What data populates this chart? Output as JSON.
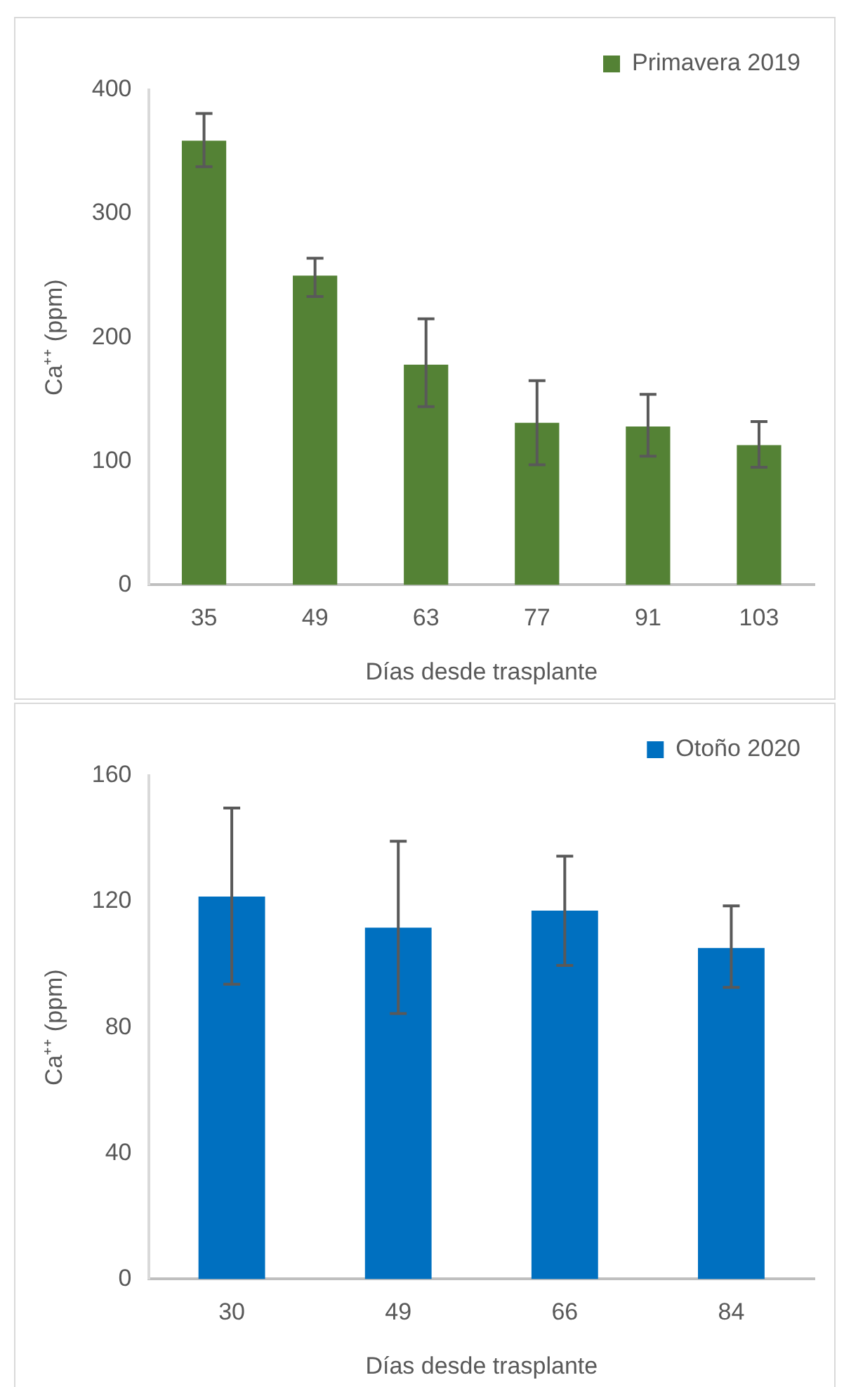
{
  "chart_data": [
    {
      "type": "bar",
      "categories": [
        "35",
        "49",
        "63",
        "77",
        "91",
        "103"
      ],
      "xlabel": "Días desde trasplante",
      "ylabel": "Ca⁺⁺ (ppm)",
      "series": [
        {
          "name": "Primavera 2019",
          "color": "#548235",
          "values": [
            359,
            250,
            178,
            131,
            128,
            113
          ],
          "errors": [
            [
              338,
              381
            ],
            [
              233,
              264
            ],
            [
              144,
              215
            ],
            [
              97,
              165
            ],
            [
              104,
              154
            ],
            [
              95,
              132
            ]
          ]
        }
      ],
      "ylim": [
        0,
        400
      ],
      "yticks": [
        0,
        100,
        200,
        300,
        400
      ],
      "grid": false,
      "legend": "top right"
    },
    {
      "type": "bar",
      "categories": [
        "30",
        "49",
        "66",
        "84"
      ],
      "xlabel": "Días desde trasplante",
      "ylabel": "Ca⁺⁺ (ppm)",
      "series": [
        {
          "name": "Otoño 2020",
          "color": "#0070c0",
          "values": [
            121.6,
            111.7,
            117.1,
            105.2
          ],
          "errors": [
            [
              93.7,
              149.7
            ],
            [
              84.4,
              139.2
            ],
            [
              99.7,
              134.4
            ],
            [
              92.7,
              118.6
            ]
          ]
        }
      ],
      "ylim": [
        0,
        160
      ],
      "yticks": [
        0,
        40,
        80,
        120,
        160
      ],
      "grid": false,
      "legend": "top right"
    }
  ]
}
